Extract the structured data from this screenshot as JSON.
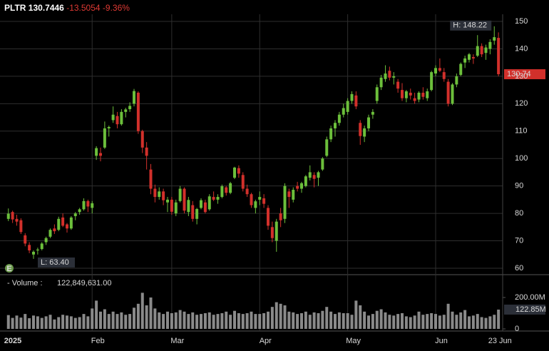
{
  "header": {
    "symbol": "PLTR",
    "last": 130.7446,
    "change": -13.5054,
    "change_pct": {
      "value": -9.36,
      "label": "-9.36%"
    }
  },
  "chart_data": {
    "type": "candlestick",
    "up_color": "#6cbf3b",
    "down_color": "#d2302b",
    "volume_color": "#8a8a8a",
    "grid": true,
    "xlim": [
      -2,
      118
    ],
    "ylim": [
      60,
      150
    ],
    "yticks": [
      60,
      70,
      80,
      90,
      100,
      110,
      120,
      130,
      140,
      150
    ],
    "y2lim": [
      0,
      200000000
    ],
    "y2ticks": [
      0,
      {
        "value": 200000000,
        "label": "200.00M"
      }
    ],
    "xticks": [
      {
        "value": 0,
        "label": "2025"
      },
      {
        "value": 20,
        "label": "Feb"
      },
      {
        "value": 39,
        "label": "Mar"
      },
      {
        "value": 60,
        "label": "Apr"
      },
      {
        "value": 81,
        "label": "May"
      },
      {
        "value": 102,
        "label": "Jun"
      },
      {
        "value": 116,
        "label": "23 Jun"
      }
    ],
    "high_label": "H: 148.22",
    "low_label": "L: 63.40",
    "earnings_marker": "E",
    "volume_title": "- Volume :",
    "volume_value": {
      "value": 122849631,
      "label": "122,849,631.00"
    },
    "last_volume_label": "122.85M",
    "candles": [
      [
        78.0,
        81.8,
        77.2,
        79.9
      ],
      [
        80.5,
        81.0,
        76.5,
        77.8
      ],
      [
        78.0,
        79.5,
        75.5,
        77.0
      ],
      [
        77.5,
        78.2,
        72.5,
        73.2
      ],
      [
        72.0,
        72.8,
        68.0,
        69.0
      ],
      [
        68.5,
        69.5,
        65.5,
        66.5
      ],
      [
        65.0,
        66.5,
        63.4,
        66.0
      ],
      [
        66.5,
        67.5,
        65.0,
        66.8
      ],
      [
        67.0,
        69.5,
        66.5,
        69.0
      ],
      [
        69.5,
        71.5,
        68.5,
        71.0
      ],
      [
        71.5,
        74.5,
        71.0,
        74.0
      ],
      [
        74.5,
        76.0,
        72.5,
        73.5
      ],
      [
        74.0,
        78.8,
        73.5,
        78.0
      ],
      [
        78.5,
        80.0,
        75.0,
        75.5
      ],
      [
        76.0,
        76.5,
        73.0,
        74.5
      ],
      [
        74.5,
        79.0,
        74.0,
        78.5
      ],
      [
        79.0,
        80.5,
        77.5,
        80.0
      ],
      [
        80.5,
        82.0,
        79.5,
        81.5
      ],
      [
        81.5,
        85.5,
        81.0,
        84.5
      ],
      [
        84.5,
        85.0,
        80.5,
        82.5
      ],
      [
        82.0,
        84.5,
        80.0,
        83.7
      ],
      [
        101.0,
        104.5,
        99.5,
        103.8
      ],
      [
        102.0,
        104.0,
        99.0,
        101.0
      ],
      [
        104.0,
        113.5,
        103.5,
        111.0
      ],
      [
        111.0,
        112.0,
        108.0,
        111.5
      ],
      [
        114.0,
        119.0,
        113.0,
        116.0
      ],
      [
        115.5,
        117.0,
        111.0,
        112.5
      ],
      [
        112.5,
        118.0,
        112.0,
        117.0
      ],
      [
        117.0,
        118.5,
        115.0,
        117.9
      ],
      [
        118.0,
        120.5,
        117.0,
        119.2
      ],
      [
        120.0,
        125.4,
        119.0,
        124.6
      ],
      [
        124.0,
        124.5,
        109.0,
        110.0
      ],
      [
        110.0,
        110.5,
        102.0,
        104.0
      ],
      [
        104.0,
        106.0,
        96.0,
        101.0
      ],
      [
        96.0,
        98.0,
        87.0,
        89.0
      ],
      [
        89.0,
        90.5,
        84.0,
        86.0
      ],
      [
        86.0,
        89.5,
        85.0,
        88.0
      ],
      [
        88.0,
        89.0,
        83.0,
        84.8
      ],
      [
        84.0,
        86.0,
        80.5,
        85.0
      ],
      [
        85.0,
        86.0,
        79.5,
        80.6
      ],
      [
        80.0,
        85.0,
        79.0,
        84.0
      ],
      [
        84.5,
        90.0,
        84.0,
        89.0
      ],
      [
        89.0,
        89.5,
        80.0,
        81.0
      ],
      [
        80.5,
        86.0,
        79.0,
        84.9
      ],
      [
        83.0,
        84.5,
        77.0,
        78.0
      ],
      [
        78.0,
        82.0,
        76.0,
        81.6
      ],
      [
        82.0,
        85.5,
        81.5,
        84.8
      ],
      [
        84.0,
        85.0,
        80.0,
        80.5
      ],
      [
        81.5,
        87.0,
        81.0,
        86.2
      ],
      [
        86.0,
        88.0,
        84.5,
        85.0
      ],
      [
        85.0,
        87.0,
        83.5,
        86.0
      ],
      [
        86.0,
        90.5,
        85.5,
        89.9
      ],
      [
        89.5,
        90.0,
        86.5,
        87.5
      ],
      [
        87.5,
        91.5,
        87.0,
        91.0
      ],
      [
        93.0,
        97.0,
        92.5,
        96.7
      ],
      [
        96.5,
        97.5,
        93.0,
        94.5
      ],
      [
        94.0,
        95.0,
        88.0,
        89.0
      ],
      [
        89.0,
        90.5,
        86.0,
        87.0
      ],
      [
        87.0,
        87.5,
        82.0,
        83.0
      ],
      [
        82.0,
        85.0,
        80.0,
        84.4
      ],
      [
        85.0,
        88.0,
        83.0,
        86.0
      ],
      [
        85.5,
        87.0,
        82.0,
        83.5
      ],
      [
        82.0,
        83.0,
        74.0,
        75.5
      ],
      [
        75.0,
        77.0,
        69.5,
        71.0
      ],
      [
        70.0,
        78.0,
        66.0,
        77.0
      ],
      [
        80.0,
        82.0,
        75.0,
        77.5
      ],
      [
        78.0,
        91.0,
        76.5,
        90.0
      ],
      [
        88.0,
        89.0,
        82.0,
        86.0
      ],
      [
        85.0,
        89.5,
        84.0,
        88.6
      ],
      [
        90.0,
        91.5,
        88.0,
        89.0
      ],
      [
        89.0,
        91.5,
        87.5,
        91.0
      ],
      [
        90.0,
        94.0,
        89.5,
        93.5
      ],
      [
        93.0,
        97.5,
        92.0,
        95.0
      ],
      [
        94.0,
        95.0,
        89.5,
        92.6
      ],
      [
        93.0,
        95.5,
        90.0,
        95.0
      ],
      [
        96.0,
        100.5,
        95.5,
        100.0
      ],
      [
        101.0,
        108.0,
        100.5,
        107.0
      ],
      [
        107.0,
        112.0,
        106.0,
        111.0
      ],
      [
        111.0,
        114.0,
        108.0,
        113.0
      ],
      [
        113.0,
        117.0,
        112.0,
        116.0
      ],
      [
        116.0,
        120.0,
        115.0,
        118.4
      ],
      [
        117.0,
        122.0,
        116.0,
        121.0
      ],
      [
        121.0,
        124.5,
        120.0,
        123.5
      ],
      [
        123.0,
        124.5,
        118.0,
        119.0
      ],
      [
        113.0,
        114.0,
        105.0,
        108.2
      ],
      [
        108.0,
        112.0,
        106.0,
        111.0
      ],
      [
        111.0,
        116.0,
        110.0,
        115.0
      ],
      [
        116.0,
        118.0,
        114.5,
        117.0
      ],
      [
        121.0,
        127.0,
        120.0,
        126.0
      ],
      [
        126.0,
        130.5,
        125.0,
        129.5
      ],
      [
        129.0,
        134.0,
        128.0,
        131.0
      ],
      [
        132.0,
        133.5,
        128.5,
        129.5
      ],
      [
        129.5,
        131.5,
        127.0,
        130.0
      ],
      [
        128.0,
        129.0,
        124.0,
        125.5
      ],
      [
        125.0,
        127.5,
        121.0,
        122.0
      ],
      [
        122.0,
        125.0,
        120.5,
        124.5
      ],
      [
        124.0,
        125.5,
        121.5,
        123.0
      ],
      [
        122.0,
        124.0,
        120.0,
        121.0
      ],
      [
        121.5,
        124.5,
        120.5,
        124.0
      ],
      [
        124.0,
        126.0,
        121.5,
        122.5
      ],
      [
        122.0,
        125.5,
        121.0,
        124.5
      ],
      [
        125.0,
        132.0,
        124.5,
        131.5
      ],
      [
        131.0,
        134.0,
        130.0,
        133.0
      ],
      [
        133.0,
        136.5,
        131.5,
        132.0
      ],
      [
        131.5,
        133.0,
        128.0,
        129.0
      ],
      [
        128.0,
        129.0,
        119.0,
        120.0
      ],
      [
        120.0,
        127.5,
        119.5,
        127.0
      ],
      [
        127.0,
        131.0,
        126.0,
        130.0
      ],
      [
        130.5,
        135.0,
        130.0,
        134.5
      ],
      [
        135.0,
        137.5,
        133.0,
        136.5
      ],
      [
        136.0,
        138.5,
        135.0,
        138.0
      ],
      [
        137.0,
        138.0,
        134.5,
        136.5
      ],
      [
        137.5,
        145.0,
        137.0,
        141.0
      ],
      [
        141.0,
        142.0,
        137.0,
        138.0
      ],
      [
        138.5,
        141.5,
        136.0,
        140.5
      ],
      [
        140.0,
        143.5,
        138.0,
        142.5
      ],
      [
        143.0,
        148.22,
        141.5,
        144.25
      ],
      [
        144.0,
        146.0,
        130.0,
        130.74
      ]
    ],
    "volume": [
      88000000,
      70000000,
      85000000,
      72000000,
      95000000,
      68000000,
      85000000,
      80000000,
      70000000,
      80000000,
      90000000,
      60000000,
      75000000,
      90000000,
      85000000,
      80000000,
      70000000,
      75000000,
      95000000,
      80000000,
      130000000,
      180000000,
      110000000,
      125000000,
      95000000,
      110000000,
      95000000,
      105000000,
      90000000,
      95000000,
      135000000,
      160000000,
      230000000,
      150000000,
      200000000,
      130000000,
      105000000,
      95000000,
      110000000,
      100000000,
      105000000,
      120000000,
      110000000,
      95000000,
      105000000,
      90000000,
      95000000,
      100000000,
      105000000,
      90000000,
      95000000,
      100000000,
      110000000,
      90000000,
      115000000,
      100000000,
      95000000,
      100000000,
      110000000,
      95000000,
      95000000,
      100000000,
      110000000,
      140000000,
      170000000,
      160000000,
      150000000,
      110000000,
      105000000,
      95000000,
      100000000,
      110000000,
      90000000,
      105000000,
      100000000,
      115000000,
      140000000,
      110000000,
      95000000,
      105000000,
      100000000,
      100000000,
      90000000,
      180000000,
      150000000,
      110000000,
      85000000,
      95000000,
      115000000,
      125000000,
      105000000,
      90000000,
      85000000,
      95000000,
      100000000,
      80000000,
      75000000,
      85000000,
      110000000,
      90000000,
      95000000,
      100000000,
      95000000,
      85000000,
      90000000,
      160000000,
      110000000,
      90000000,
      105000000,
      120000000,
      80000000,
      85000000,
      95000000,
      75000000,
      70000000,
      80000000,
      90000000,
      122849631
    ]
  }
}
